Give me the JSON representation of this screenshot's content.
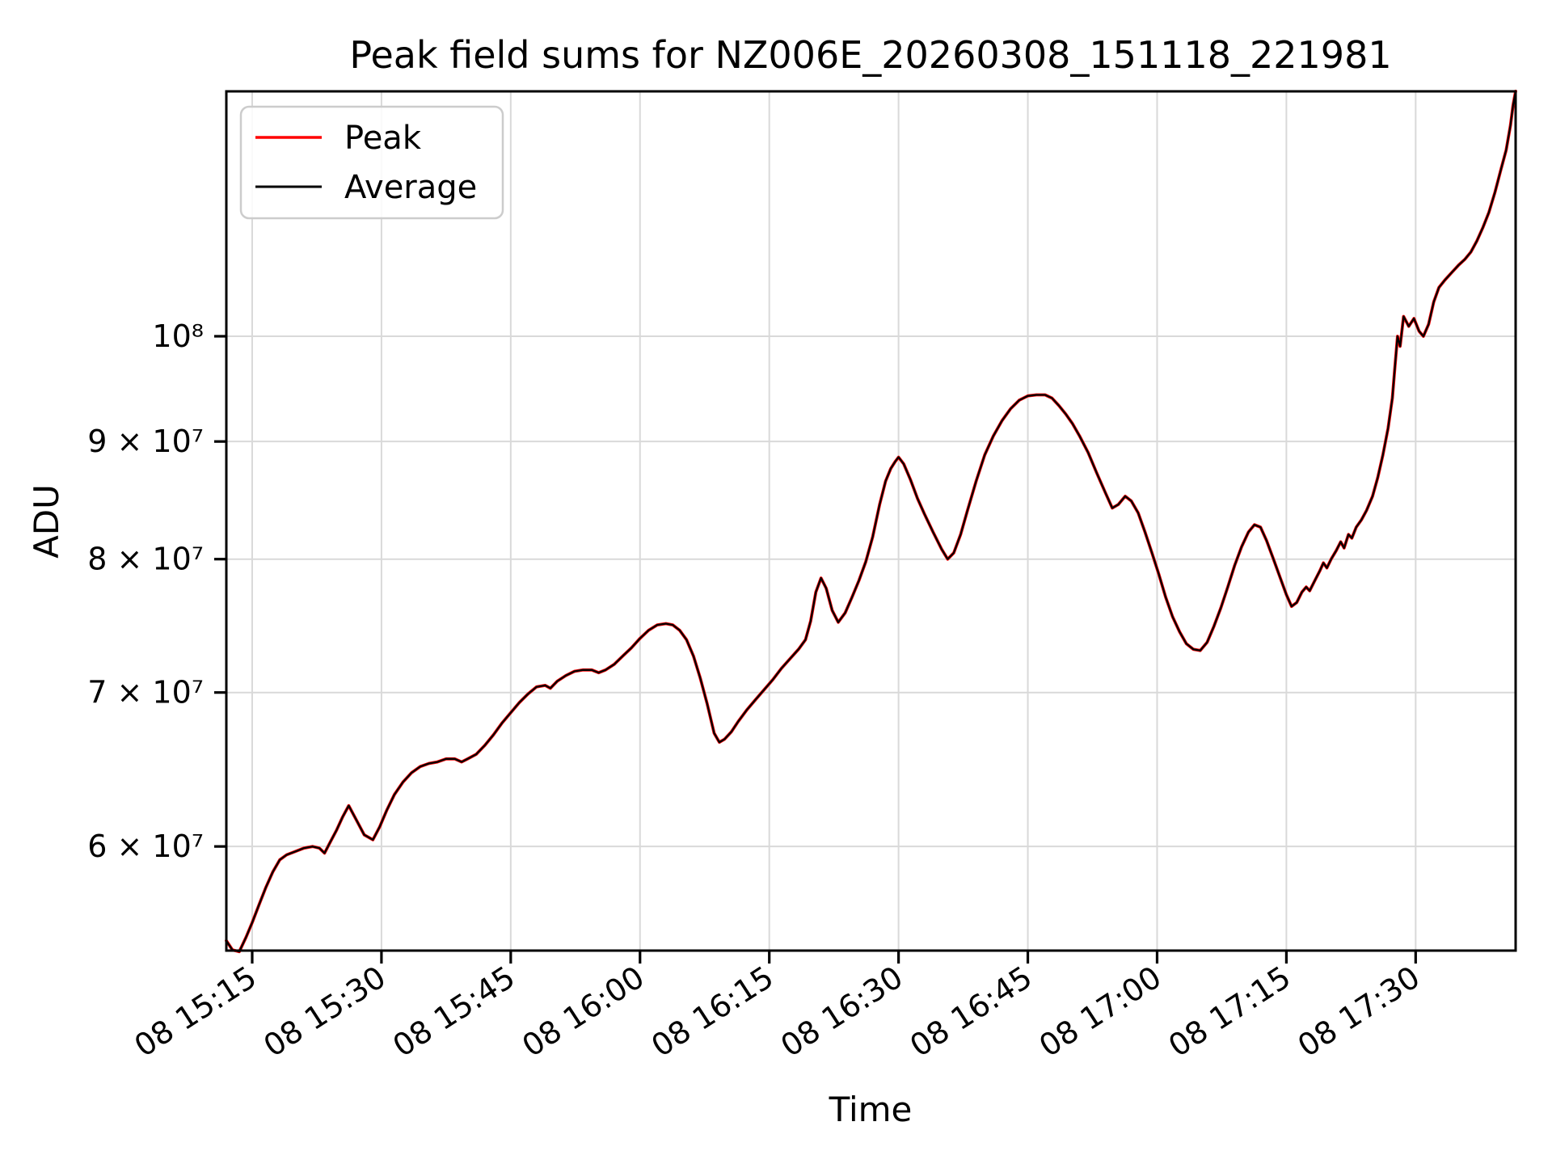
{
  "chart_data": {
    "type": "line",
    "title": "Peak field sums for NZ006E_20260308_151118_221981",
    "xlabel": "Time",
    "ylabel": "ADU",
    "yscale": "log",
    "grid": true,
    "legend_position": "upper left",
    "colors": {
      "grid": "#d9d9d9",
      "spine": "#000000",
      "background": "#ffffff",
      "legend_border": "#cccccc"
    },
    "x_unit_minutes_from": "08 15:15",
    "xlim_minutes": [
      -3.0,
      146.6
    ],
    "ylim": [
      54060000,
      127800000
    ],
    "x_ticks": [
      {
        "t": 0,
        "label": "08 15:15"
      },
      {
        "t": 15,
        "label": "08 15:30"
      },
      {
        "t": 30,
        "label": "08 15:45"
      },
      {
        "t": 45,
        "label": "08 16:00"
      },
      {
        "t": 60,
        "label": "08 16:15"
      },
      {
        "t": 75,
        "label": "08 16:30"
      },
      {
        "t": 90,
        "label": "08 16:45"
      },
      {
        "t": 105,
        "label": "08 17:00"
      },
      {
        "t": 120,
        "label": "08 17:15"
      },
      {
        "t": 135,
        "label": "08 17:30"
      }
    ],
    "y_ticks": [
      {
        "v": 10.0,
        "label": "10⁸"
      },
      {
        "v": 9.0,
        "label": "9 × 10⁷"
      },
      {
        "v": 8.0,
        "label": "8 × 10⁷"
      },
      {
        "v": 7.0,
        "label": "7 × 10⁷"
      },
      {
        "v": 6.0,
        "label": "6 × 10⁷"
      }
    ],
    "value_scale": 10000000,
    "x_minutes": [
      -3.0,
      -2.3,
      -1.5,
      -0.7,
      0,
      0.8,
      1.6,
      2.4,
      3.2,
      4,
      5,
      6,
      7,
      7.8,
      8.4,
      9,
      9.8,
      10.5,
      11.2,
      12,
      13,
      14,
      14.8,
      15.6,
      16.5,
      17.5,
      18.5,
      19.5,
      20.5,
      21.5,
      22.5,
      23.5,
      24.3,
      25,
      26,
      27,
      28,
      29,
      30,
      31,
      32,
      33,
      34,
      34.6,
      35.4,
      36.4,
      37.4,
      38.4,
      39.4,
      40.2,
      41,
      42,
      43,
      44,
      45,
      46,
      47,
      48,
      48.8,
      49.6,
      50.4,
      51.2,
      52,
      52.8,
      53.6,
      54.2,
      54.8,
      55.6,
      56.4,
      57.4,
      58.4,
      59.4,
      60.4,
      61.4,
      62.4,
      63.4,
      64.2,
      64.8,
      65.4,
      66,
      66.6,
      67.3,
      68,
      68.8,
      69.6,
      70.4,
      71.2,
      72,
      72.8,
      73.5,
      74.1,
      74.6,
      75,
      75.6,
      76.4,
      77.2,
      78,
      79,
      80,
      80.7,
      81.4,
      82.2,
      83,
      84,
      85,
      86,
      87,
      88,
      89,
      90,
      91,
      92,
      92.8,
      93.6,
      94.4,
      95.2,
      96,
      97,
      98,
      99,
      99.8,
      100.5,
      101.3,
      102,
      102.8,
      103.6,
      104.4,
      105.2,
      106,
      106.8,
      107.6,
      108.4,
      109.2,
      110,
      110.8,
      111.6,
      112.4,
      113.2,
      114,
      114.8,
      115.6,
      116.3,
      117,
      117.7,
      118.5,
      119.3,
      120,
      120.6,
      121.2,
      121.8,
      122.3,
      122.7,
      123.3,
      123.9,
      124.3,
      124.7,
      125.2,
      125.8,
      126.3,
      126.7,
      127.2,
      127.6,
      128.1,
      128.7,
      129.3,
      130,
      130.6,
      131.2,
      131.8,
      132.3,
      132.6,
      132.9,
      133.2,
      133.6,
      134.2,
      134.8,
      135.4,
      135.9,
      136.5,
      137.1,
      137.7,
      138.4,
      139.2,
      140,
      140.7,
      141.4,
      142.1,
      142.8,
      143.5,
      144.2,
      144.9,
      145.5,
      146,
      146.3,
      146.6
    ],
    "series": [
      {
        "name": "Peak",
        "color": "#ff0000",
        "linewidth": 3.8,
        "values_e7": [
          5.46,
          5.41,
          5.4,
          5.48,
          5.56,
          5.66,
          5.76,
          5.85,
          5.92,
          5.95,
          5.97,
          5.99,
          6.0,
          5.99,
          5.96,
          6.02,
          6.1,
          6.18,
          6.25,
          6.17,
          6.07,
          6.04,
          6.12,
          6.22,
          6.32,
          6.4,
          6.46,
          6.5,
          6.52,
          6.53,
          6.55,
          6.55,
          6.53,
          6.55,
          6.58,
          6.64,
          6.71,
          6.79,
          6.86,
          6.93,
          6.99,
          7.04,
          7.05,
          7.03,
          7.08,
          7.12,
          7.15,
          7.16,
          7.16,
          7.14,
          7.16,
          7.2,
          7.26,
          7.32,
          7.39,
          7.45,
          7.49,
          7.5,
          7.49,
          7.45,
          7.38,
          7.26,
          7.1,
          6.92,
          6.72,
          6.66,
          6.68,
          6.73,
          6.8,
          6.88,
          6.95,
          7.02,
          7.09,
          7.17,
          7.24,
          7.31,
          7.38,
          7.52,
          7.74,
          7.85,
          7.77,
          7.6,
          7.51,
          7.58,
          7.7,
          7.83,
          7.98,
          8.18,
          8.45,
          8.65,
          8.76,
          8.82,
          8.86,
          8.8,
          8.66,
          8.5,
          8.37,
          8.22,
          8.08,
          8.0,
          8.05,
          8.2,
          8.4,
          8.65,
          8.88,
          9.05,
          9.19,
          9.3,
          9.38,
          9.42,
          9.43,
          9.43,
          9.4,
          9.33,
          9.25,
          9.16,
          9.05,
          8.9,
          8.72,
          8.55,
          8.42,
          8.45,
          8.52,
          8.48,
          8.38,
          8.22,
          8.05,
          7.88,
          7.7,
          7.55,
          7.44,
          7.35,
          7.31,
          7.3,
          7.36,
          7.48,
          7.62,
          7.78,
          7.95,
          8.1,
          8.22,
          8.28,
          8.26,
          8.15,
          8.0,
          7.85,
          7.72,
          7.63,
          7.66,
          7.74,
          7.78,
          7.75,
          7.83,
          7.91,
          7.97,
          7.93,
          8.0,
          8.07,
          8.14,
          8.09,
          8.2,
          8.17,
          8.26,
          8.32,
          8.4,
          8.52,
          8.68,
          8.88,
          9.12,
          9.4,
          9.7,
          10.0,
          9.9,
          10.2,
          10.1,
          10.18,
          10.05,
          10.0,
          10.12,
          10.35,
          10.5,
          10.58,
          10.66,
          10.74,
          10.8,
          10.88,
          11.0,
          11.15,
          11.32,
          11.55,
          11.82,
          12.05,
          12.35,
          12.6,
          12.78
        ]
      },
      {
        "name": "Average",
        "color": "#000000",
        "linewidth": 2.3,
        "values_e7": [
          5.46,
          5.41,
          5.4,
          5.48,
          5.56,
          5.66,
          5.76,
          5.85,
          5.92,
          5.95,
          5.97,
          5.99,
          6.0,
          5.99,
          5.96,
          6.02,
          6.1,
          6.18,
          6.25,
          6.17,
          6.07,
          6.04,
          6.12,
          6.22,
          6.32,
          6.4,
          6.46,
          6.5,
          6.52,
          6.53,
          6.55,
          6.55,
          6.53,
          6.55,
          6.58,
          6.64,
          6.71,
          6.79,
          6.86,
          6.93,
          6.99,
          7.04,
          7.05,
          7.03,
          7.08,
          7.12,
          7.15,
          7.16,
          7.16,
          7.14,
          7.16,
          7.2,
          7.26,
          7.32,
          7.39,
          7.45,
          7.49,
          7.5,
          7.49,
          7.45,
          7.38,
          7.26,
          7.1,
          6.92,
          6.72,
          6.66,
          6.68,
          6.73,
          6.8,
          6.88,
          6.95,
          7.02,
          7.09,
          7.17,
          7.24,
          7.31,
          7.38,
          7.52,
          7.74,
          7.85,
          7.77,
          7.6,
          7.51,
          7.58,
          7.7,
          7.83,
          7.98,
          8.18,
          8.45,
          8.65,
          8.76,
          8.82,
          8.86,
          8.8,
          8.66,
          8.5,
          8.37,
          8.22,
          8.08,
          8.0,
          8.05,
          8.2,
          8.4,
          8.65,
          8.88,
          9.05,
          9.19,
          9.3,
          9.38,
          9.42,
          9.43,
          9.43,
          9.4,
          9.33,
          9.25,
          9.16,
          9.05,
          8.9,
          8.72,
          8.55,
          8.42,
          8.45,
          8.52,
          8.48,
          8.38,
          8.22,
          8.05,
          7.88,
          7.7,
          7.55,
          7.44,
          7.35,
          7.31,
          7.3,
          7.36,
          7.48,
          7.62,
          7.78,
          7.95,
          8.1,
          8.22,
          8.28,
          8.26,
          8.15,
          8.0,
          7.85,
          7.72,
          7.63,
          7.66,
          7.74,
          7.78,
          7.75,
          7.83,
          7.91,
          7.97,
          7.93,
          8.0,
          8.07,
          8.14,
          8.09,
          8.2,
          8.17,
          8.26,
          8.32,
          8.4,
          8.52,
          8.68,
          8.88,
          9.12,
          9.4,
          9.7,
          10.0,
          9.9,
          10.2,
          10.1,
          10.18,
          10.05,
          10.0,
          10.12,
          10.35,
          10.5,
          10.58,
          10.66,
          10.74,
          10.8,
          10.88,
          11.0,
          11.15,
          11.32,
          11.55,
          11.82,
          12.05,
          12.35,
          12.6,
          12.78
        ]
      }
    ]
  }
}
